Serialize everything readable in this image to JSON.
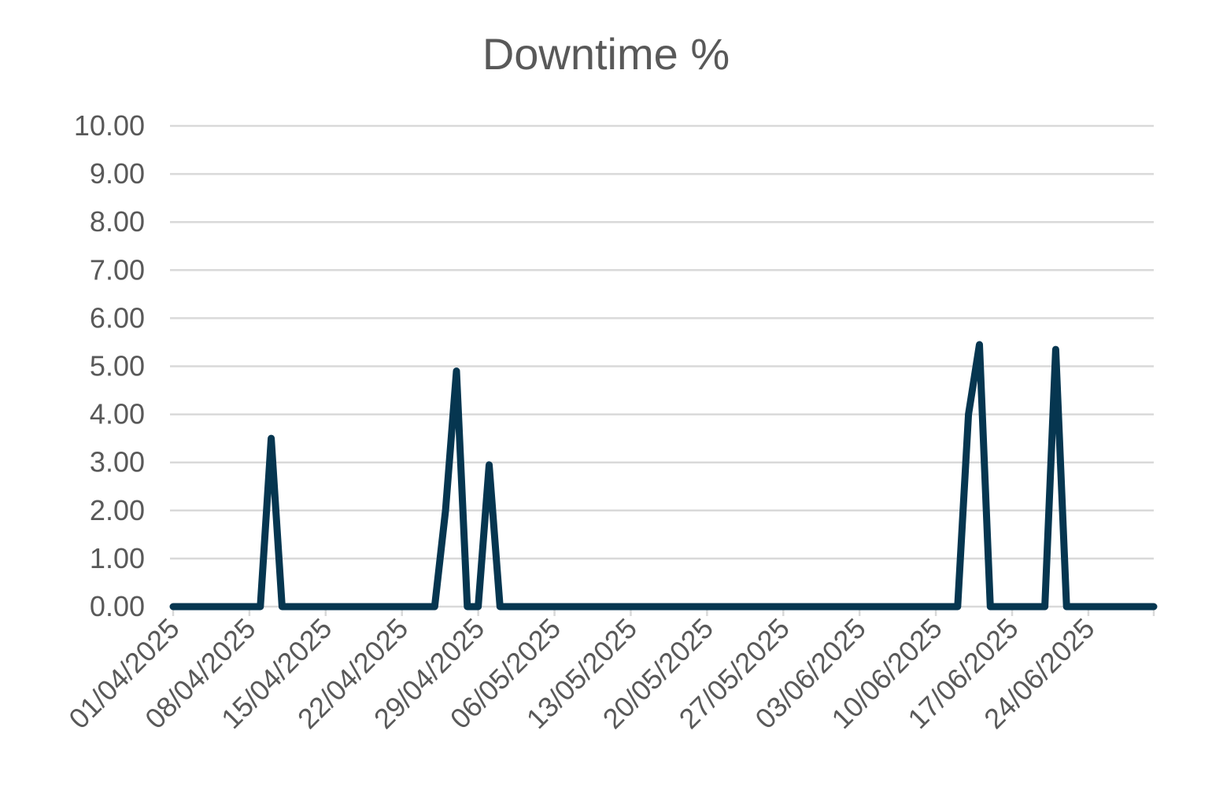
{
  "chart_data": {
    "type": "line",
    "title": "Downtime %",
    "xlabel": "",
    "ylabel": "",
    "ylim": [
      0,
      10
    ],
    "y_ticks": [
      "0.00",
      "1.00",
      "2.00",
      "3.00",
      "4.00",
      "5.00",
      "6.00",
      "7.00",
      "8.00",
      "9.00",
      "10.00"
    ],
    "x_range": [
      "01/04/2025",
      "30/06/2025"
    ],
    "x_ticks": [
      "01/04/2025",
      "08/04/2025",
      "15/04/2025",
      "22/04/2025",
      "29/04/2025",
      "06/05/2025",
      "13/05/2025",
      "20/05/2025",
      "27/05/2025",
      "03/06/2025",
      "10/06/2025",
      "17/06/2025",
      "24/06/2025"
    ],
    "grid": true,
    "legend": "none",
    "colors": {
      "line": "#063650",
      "grid": "#d9d9d9",
      "text": "#595959"
    },
    "series": [
      {
        "points": [
          [
            "01/04/2025",
            0
          ],
          [
            "09/04/2025",
            0
          ],
          [
            "10/04/2025",
            3.5
          ],
          [
            "11/04/2025",
            0
          ],
          [
            "25/04/2025",
            0
          ],
          [
            "26/04/2025",
            2.0
          ],
          [
            "27/04/2025",
            4.9
          ],
          [
            "28/04/2025",
            0
          ],
          [
            "29/04/2025",
            0
          ],
          [
            "30/04/2025",
            2.95
          ],
          [
            "01/05/2025",
            0
          ],
          [
            "12/06/2025",
            0
          ],
          [
            "13/06/2025",
            4.0
          ],
          [
            "14/06/2025",
            5.45
          ],
          [
            "15/06/2025",
            0
          ],
          [
            "20/06/2025",
            0
          ],
          [
            "21/06/2025",
            5.35
          ],
          [
            "22/06/2025",
            0
          ],
          [
            "30/06/2025",
            0
          ]
        ]
      }
    ]
  }
}
